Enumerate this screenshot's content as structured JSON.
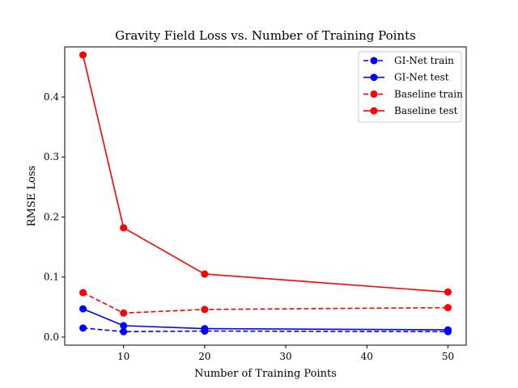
{
  "chart_data": {
    "type": "line",
    "title": "Gravity Field Loss vs. Number of Training Points",
    "xlabel": "Number of Training Points",
    "ylabel": "RMSE Loss",
    "xlim": [
      2.75,
      52.25
    ],
    "ylim": [
      -0.0135,
      0.4835
    ],
    "x_ticks": [
      10,
      20,
      30,
      40,
      50
    ],
    "y_ticks": [
      0.0,
      0.1,
      0.2,
      0.3,
      0.4
    ],
    "y_tick_labels": [
      "0.0",
      "0.1",
      "0.2",
      "0.3",
      "0.4"
    ],
    "grid": false,
    "legend_position": "top-right",
    "x": [
      5,
      10,
      20,
      50
    ],
    "series": [
      {
        "name": "GI-Net train",
        "color": "#0000ff",
        "linestyle": "dashed",
        "marker": "circle",
        "values": [
          0.015,
          0.009,
          0.01,
          0.009
        ]
      },
      {
        "name": "GI-Net test",
        "color": "#0000ff",
        "linestyle": "solid",
        "marker": "circle",
        "values": [
          0.047,
          0.019,
          0.014,
          0.012
        ]
      },
      {
        "name": "Baseline train",
        "color": "#ff0000",
        "linestyle": "dashed",
        "marker": "circle",
        "values": [
          0.074,
          0.04,
          0.046,
          0.049
        ]
      },
      {
        "name": "Baseline test",
        "color": "#ff0000",
        "linestyle": "solid",
        "marker": "circle",
        "values": [
          0.47,
          0.182,
          0.105,
          0.075
        ]
      }
    ]
  }
}
